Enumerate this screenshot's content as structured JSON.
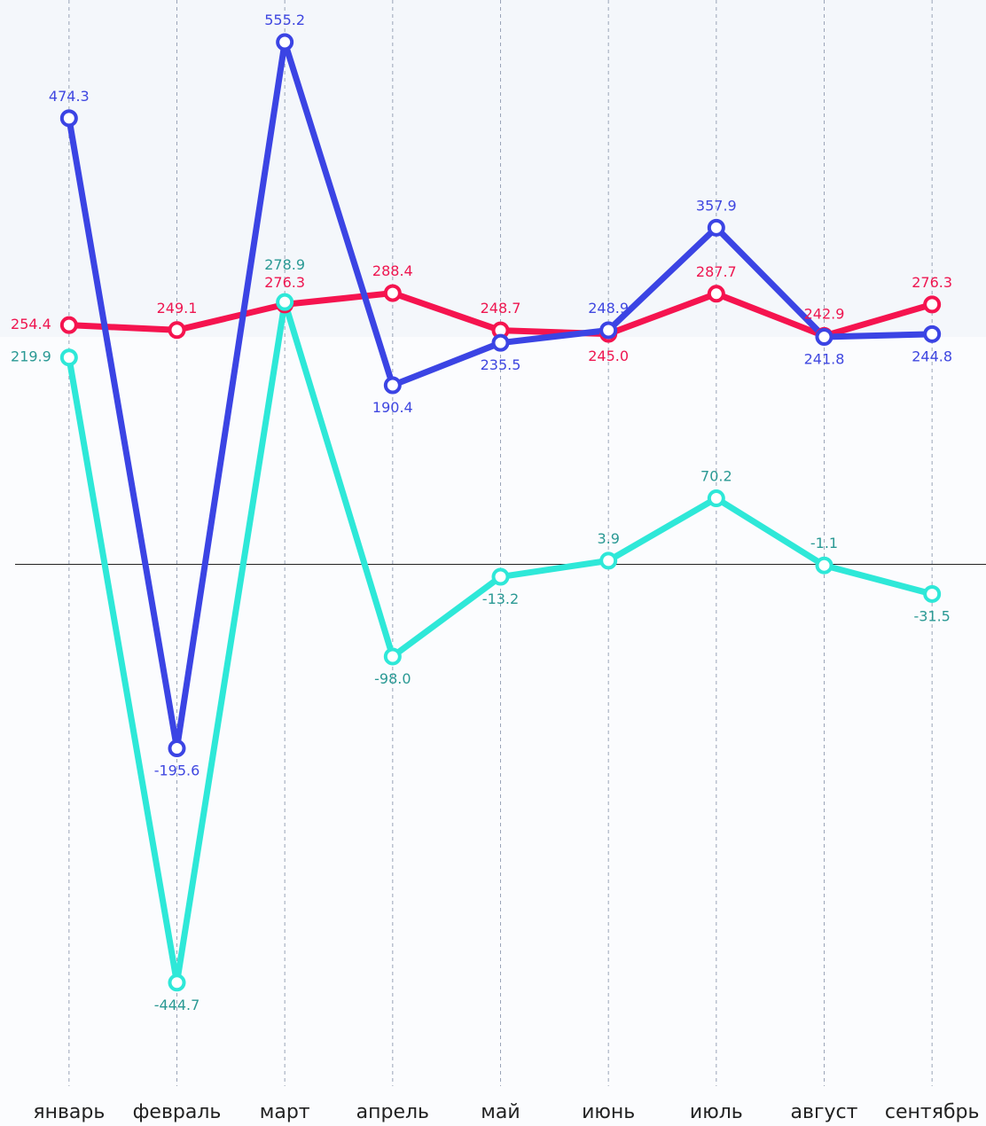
{
  "chart_data": {
    "type": "line",
    "categories": [
      "январь",
      "февраль",
      "март",
      "апрель",
      "май",
      "июнь",
      "июль",
      "август",
      "сентябрь"
    ],
    "series": [
      {
        "color": "#f5144f",
        "label_color": "#ee1650",
        "values": [
          254.4,
          249.1,
          276.3,
          288.4,
          248.7,
          245,
          287.7,
          242.9,
          276.3
        ],
        "value_labels": [
          "254.4",
          "249.1",
          "276.3",
          "288.4",
          "248.7",
          "245.0",
          "287.7",
          "242.9",
          "276.3"
        ]
      },
      {
        "color": "#3b44e4",
        "label_color": "#3f47e0",
        "values": [
          474.3,
          -195.6,
          555.2,
          190.4,
          235.5,
          248.9,
          357.9,
          241.8,
          244.8
        ],
        "value_labels": [
          "474.3",
          "-195.6",
          "555.2",
          "190.4",
          "235.5",
          "248.9",
          "357.9",
          "241.8",
          "244.8"
        ]
      },
      {
        "color": "#2ee8d8",
        "label_color": "#2a9994",
        "values": [
          219.9,
          -444.7,
          278.9,
          -98,
          -13.2,
          3.9,
          70.2,
          -1.1,
          -31.5
        ],
        "value_labels": [
          "219.9",
          "-444.7",
          "278.9",
          "-98.0",
          "-13.2",
          "3.9",
          "70.2",
          "-1.1",
          "-31.5"
        ]
      }
    ],
    "ylim": [
      -550,
      600
    ]
  }
}
